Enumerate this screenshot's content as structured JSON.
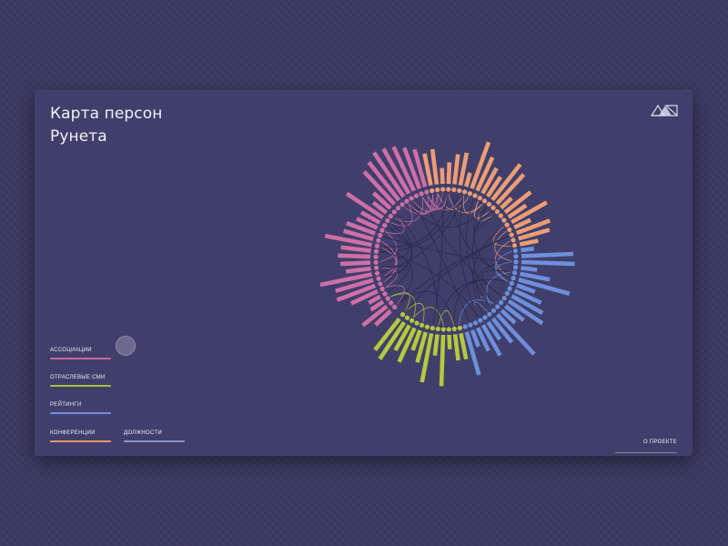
{
  "title": {
    "line1": "Карта персон",
    "line2": "Рунета"
  },
  "logo_icon": "triangle-logo-icon",
  "legend": [
    {
      "label": "АССОЦИАЦИИ",
      "color": "#c9679f"
    },
    {
      "label": "ОТРАСЛЕВЫЕ СМИ",
      "color": "#a9c13a"
    },
    {
      "label": "РЕЙТИНГИ",
      "color": "#6f8fdc"
    },
    {
      "label": "КОНФЕРЕНЦИИ",
      "color": "#e8956b"
    },
    {
      "label": "ДОЛЖНОСТИ",
      "color": "#8f95c9"
    }
  ],
  "about": {
    "label": "О ПРОЕКТЕ"
  },
  "colors": {
    "background": "#3b3a63",
    "card": "#403f6b",
    "pink": "#cf6fa7",
    "orange": "#ec9d75",
    "blue": "#6f8fdc",
    "green": "#b5c93e",
    "links": "#2c2b4e"
  }
}
